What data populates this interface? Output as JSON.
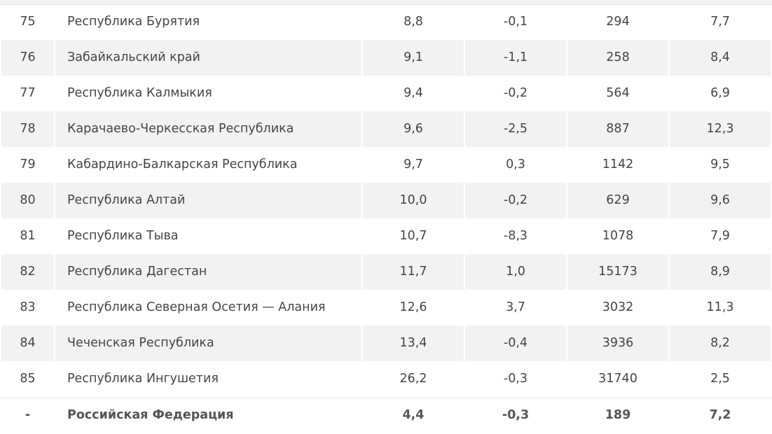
{
  "table": {
    "rows": [
      {
        "rank": "75",
        "region": "Республика Бурятия",
        "v1": "8,8",
        "v2": "-0,1",
        "v3": "294",
        "v4": "7,7"
      },
      {
        "rank": "76",
        "region": "Забайкальский край",
        "v1": "9,1",
        "v2": "-1,1",
        "v3": "258",
        "v4": "8,4"
      },
      {
        "rank": "77",
        "region": "Республика Калмыкия",
        "v1": "9,4",
        "v2": "-0,2",
        "v3": "564",
        "v4": "6,9"
      },
      {
        "rank": "78",
        "region": "Карачаево-Черкесская Республика",
        "v1": "9,6",
        "v2": "-2,5",
        "v3": "887",
        "v4": "12,3"
      },
      {
        "rank": "79",
        "region": "Кабардино-Балкарская Республика",
        "v1": "9,7",
        "v2": "0,3",
        "v3": "1142",
        "v4": "9,5"
      },
      {
        "rank": "80",
        "region": "Республика Алтай",
        "v1": "10,0",
        "v2": "-0,2",
        "v3": "629",
        "v4": "9,6"
      },
      {
        "rank": "81",
        "region": "Республика Тыва",
        "v1": "10,7",
        "v2": "-8,3",
        "v3": "1078",
        "v4": "7,9"
      },
      {
        "rank": "82",
        "region": "Республика Дагестан",
        "v1": "11,7",
        "v2": "1,0",
        "v3": "15173",
        "v4": "8,9"
      },
      {
        "rank": "83",
        "region": "Республика Северная Осетия — Алания",
        "v1": "12,6",
        "v2": "3,7",
        "v3": "3032",
        "v4": "11,3"
      },
      {
        "rank": "84",
        "region": "Чеченская Республика",
        "v1": "13,4",
        "v2": "-0,4",
        "v3": "3936",
        "v4": "8,2"
      },
      {
        "rank": "85",
        "region": "Республика Ингушетия",
        "v1": "26,2",
        "v2": "-0,3",
        "v3": "31740",
        "v4": "2,5"
      }
    ],
    "total": {
      "rank": "-",
      "region": "Российская Федерация",
      "v1": "4,4",
      "v2": "-0,3",
      "v3": "189",
      "v4": "7,2"
    }
  },
  "colors": {
    "shaded_row": "#f2f2f2",
    "text": "#444444"
  }
}
